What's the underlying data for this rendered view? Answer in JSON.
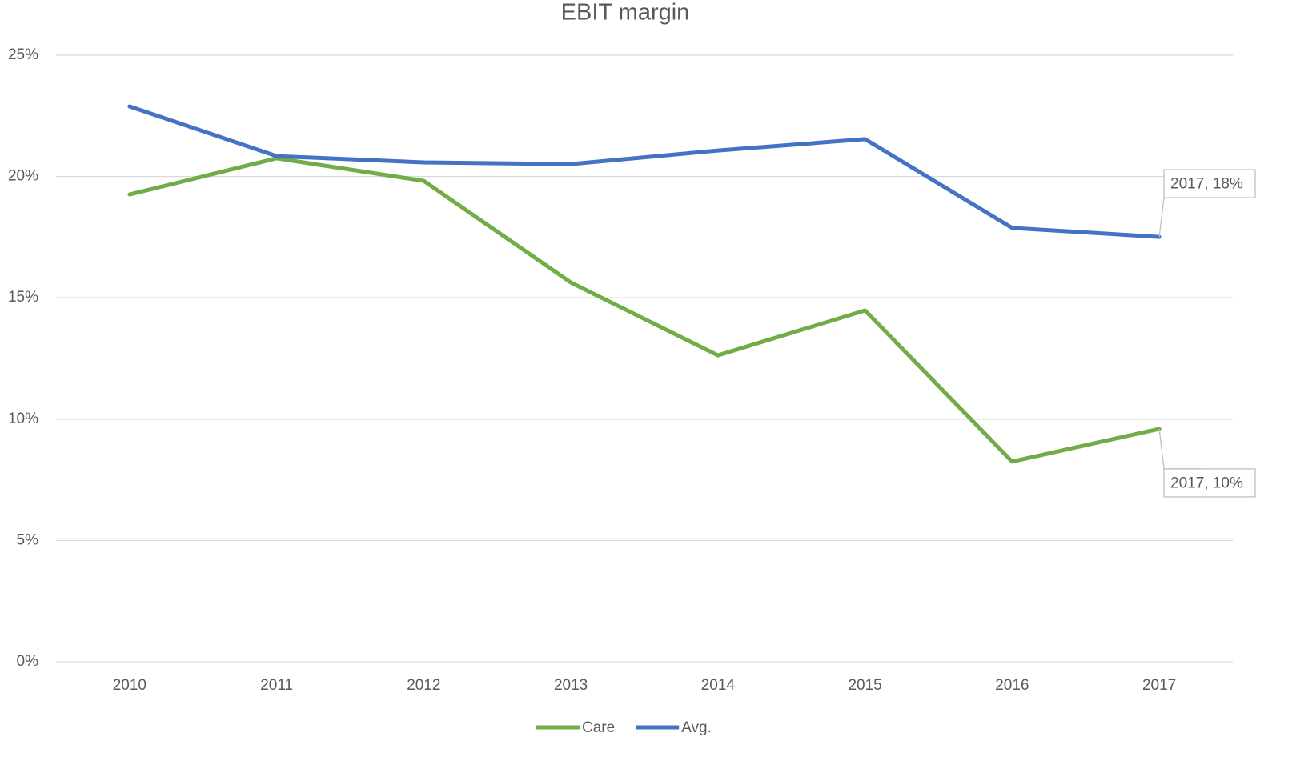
{
  "chart_data": {
    "type": "line",
    "title": "EBIT margin",
    "categories": [
      "2010",
      "2011",
      "2012",
      "2013",
      "2014",
      "2015",
      "2016",
      "2017"
    ],
    "series": [
      {
        "name": "Care",
        "color": "#70ad47",
        "values": [
          19.26,
          20.75,
          19.82,
          15.63,
          12.63,
          14.48,
          8.25,
          9.6
        ],
        "value_labels": [
          null,
          null,
          null,
          null,
          null,
          null,
          null,
          "2017, 10%"
        ]
      },
      {
        "name": "Avg.",
        "color": "#4472c4",
        "values": [
          22.89,
          20.84,
          20.58,
          20.51,
          21.07,
          21.54,
          17.88,
          17.51
        ],
        "value_labels": [
          null,
          null,
          null,
          null,
          null,
          null,
          null,
          "2017, 18%"
        ]
      }
    ],
    "ylim": [
      0,
      25
    ],
    "yticks": [
      {
        "value": 0,
        "label": "0%"
      },
      {
        "value": 5,
        "label": "5%"
      },
      {
        "value": 10,
        "label": "10%"
      },
      {
        "value": 15,
        "label": "15%"
      },
      {
        "value": 20,
        "label": "20%"
      },
      {
        "value": 25,
        "label": "25%"
      }
    ],
    "grid": true,
    "legend": "bottom"
  }
}
